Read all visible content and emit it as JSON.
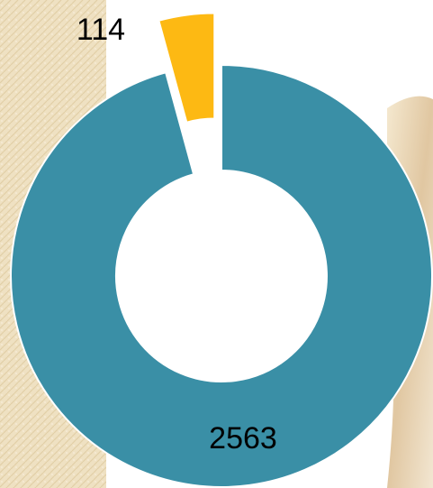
{
  "chart_data": {
    "type": "donut",
    "values": [
      2563,
      114
    ],
    "colors": [
      "#3a8fa6",
      "#fdb913"
    ],
    "explode": [
      false,
      true
    ]
  }
}
